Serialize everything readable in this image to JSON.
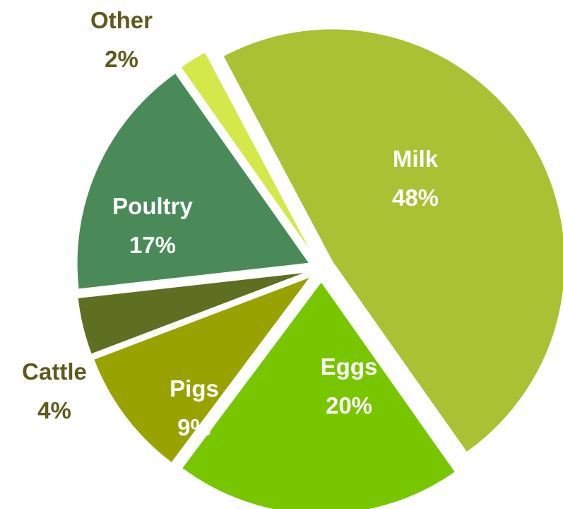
{
  "chart_data": {
    "type": "pie",
    "title": "",
    "categories": [
      "Milk",
      "Eggs",
      "Pigs",
      "Cattle",
      "Poultry",
      "Other"
    ],
    "values": [
      48,
      20,
      9,
      4,
      17,
      2
    ],
    "labels": {
      "Milk": {
        "name": "Milk",
        "pct": "48%"
      },
      "Eggs": {
        "name": "Eggs",
        "pct": "20%"
      },
      "Pigs": {
        "name": "Pigs",
        "pct": "9%"
      },
      "Cattle": {
        "name": "Cattle",
        "pct": "4%"
      },
      "Poultry": {
        "name": "Poultry",
        "pct": "17%"
      },
      "Other": {
        "name": "Other",
        "pct": "2%"
      }
    },
    "colors": {
      "Milk": "#a9c133",
      "Eggs": "#78c600",
      "Pigs": "#98a200",
      "Cattle": "#5f6f22",
      "Poultry": "#4a8a58",
      "Other": "#d4e84a"
    },
    "label_colors": {
      "inside": "#ffffff",
      "outside": "#5f5a1c"
    },
    "legend": "none",
    "exploded": true
  }
}
